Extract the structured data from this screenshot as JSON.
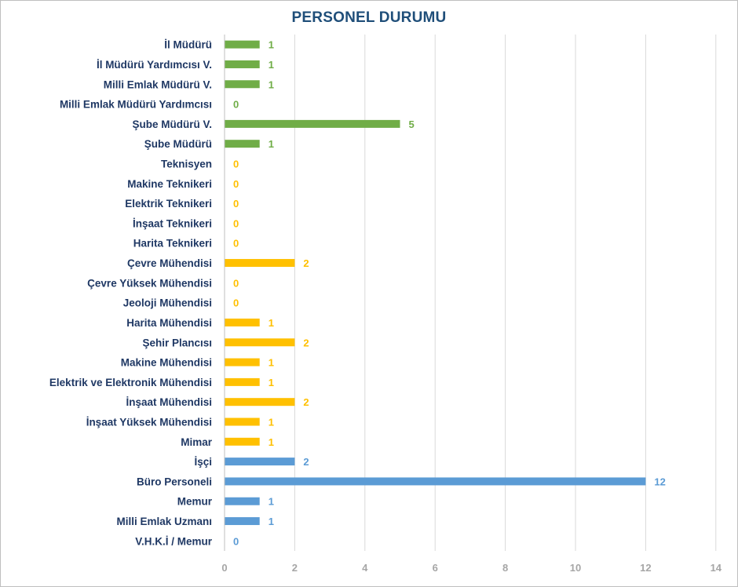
{
  "chart_data": {
    "type": "bar",
    "orientation": "horizontal",
    "title": "PERSONEL DURUMU",
    "xlim": [
      0,
      14
    ],
    "x_ticks": [
      "0",
      "2",
      "4",
      "6",
      "8",
      "10",
      "12",
      "14"
    ],
    "grid": "vertical",
    "legend": "none",
    "colors": {
      "green": "#70ad47",
      "orange": "#ffc000",
      "blue": "#5b9bd5"
    },
    "bars": [
      {
        "category": "İl Müdürü",
        "value": 1,
        "color": "green"
      },
      {
        "category": "İl Müdürü Yardımcısı V.",
        "value": 1,
        "color": "green"
      },
      {
        "category": "Milli Emlak Müdürü V.",
        "value": 1,
        "color": "green"
      },
      {
        "category": "Milli Emlak Müdürü Yardımcısı",
        "value": 0,
        "color": "green"
      },
      {
        "category": "Şube Müdürü V.",
        "value": 5,
        "color": "green"
      },
      {
        "category": "Şube Müdürü",
        "value": 1,
        "color": "green"
      },
      {
        "category": "Teknisyen",
        "value": 0,
        "color": "orange"
      },
      {
        "category": "Makine Teknikeri",
        "value": 0,
        "color": "orange"
      },
      {
        "category": "Elektrik Teknikeri",
        "value": 0,
        "color": "orange"
      },
      {
        "category": "İnşaat Teknikeri",
        "value": 0,
        "color": "orange"
      },
      {
        "category": "Harita Teknikeri",
        "value": 0,
        "color": "orange"
      },
      {
        "category": "Çevre Mühendisi",
        "value": 2,
        "color": "orange"
      },
      {
        "category": "Çevre Yüksek Mühendisi",
        "value": 0,
        "color": "orange"
      },
      {
        "category": "Jeoloji Mühendisi",
        "value": 0,
        "color": "orange"
      },
      {
        "category": "Harita Mühendisi",
        "value": 1,
        "color": "orange"
      },
      {
        "category": "Şehir Plancısı",
        "value": 2,
        "color": "orange"
      },
      {
        "category": "Makine Mühendisi",
        "value": 1,
        "color": "orange"
      },
      {
        "category": "Elektrik ve Elektronik Mühendisi",
        "value": 1,
        "color": "orange"
      },
      {
        "category": "İnşaat Mühendisi",
        "value": 2,
        "color": "orange"
      },
      {
        "category": "İnşaat Yüksek Mühendisi",
        "value": 1,
        "color": "orange"
      },
      {
        "category": "Mimar",
        "value": 1,
        "color": "orange"
      },
      {
        "category": "İşçi",
        "value": 2,
        "color": "blue"
      },
      {
        "category": "Büro Personeli",
        "value": 12,
        "color": "blue"
      },
      {
        "category": "Memur",
        "value": 1,
        "color": "blue"
      },
      {
        "category": "Milli Emlak Uzmanı",
        "value": 1,
        "color": "blue"
      },
      {
        "category": "V.H.K.İ / Memur",
        "value": 0,
        "color": "blue"
      }
    ]
  }
}
